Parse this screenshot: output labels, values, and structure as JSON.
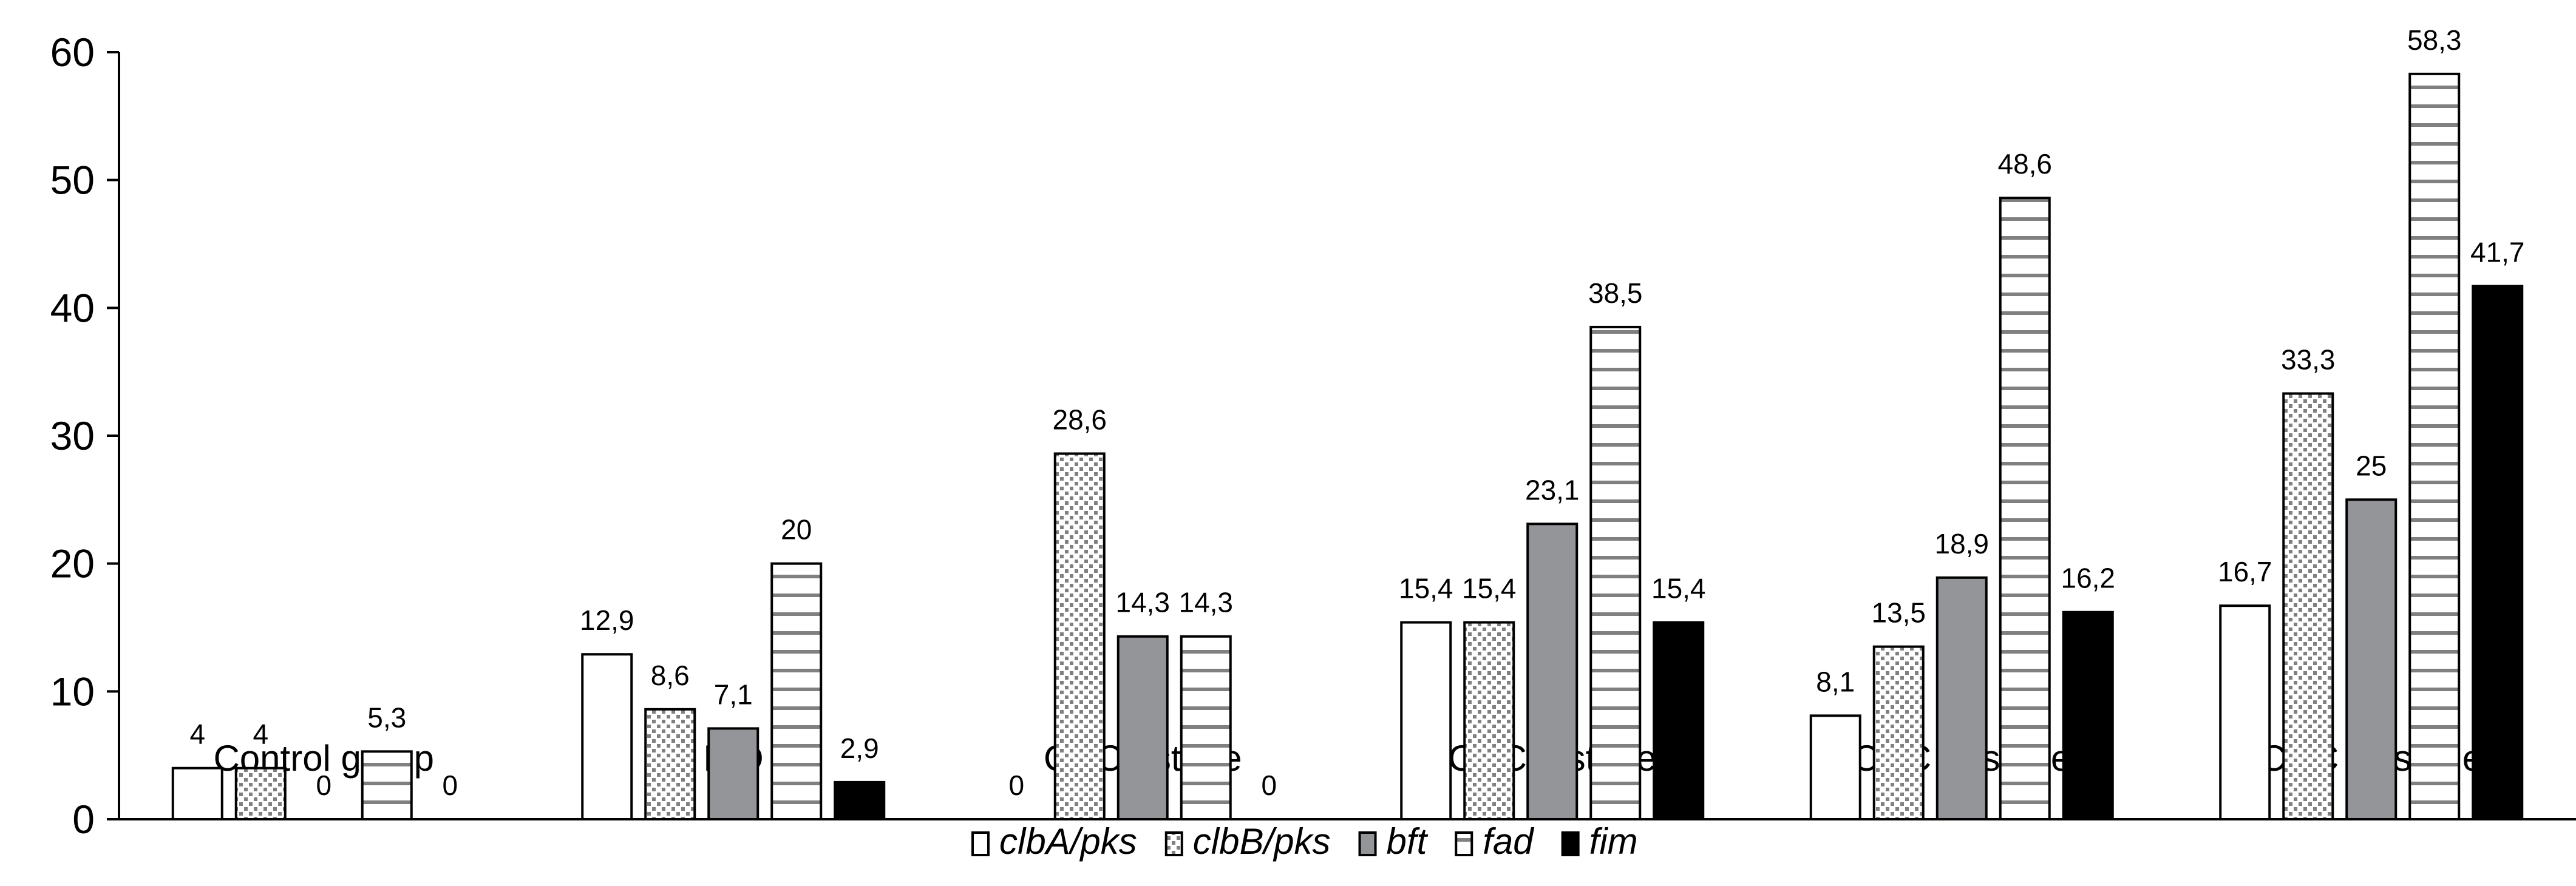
{
  "chart_data": {
    "type": "bar",
    "title": "",
    "xlabel": "",
    "ylabel": "",
    "ylim": [
      0,
      60
    ],
    "yticks": [
      "0",
      "10",
      "20",
      "30",
      "40",
      "50",
      "60"
    ],
    "grid": false,
    "legend_placement": "bottom",
    "categories": [
      "Control group",
      "IBD",
      "CRC I stage",
      "CRC II stage",
      "CRC III stage",
      "CRC IV stage"
    ],
    "series": [
      {
        "name": "clbA/pks",
        "pattern": "white",
        "values": [
          4,
          12.9,
          0,
          15.4,
          8.1,
          16.7
        ],
        "labels": [
          "4",
          "12,9",
          "0",
          "15,4",
          "8,1",
          "16,7"
        ]
      },
      {
        "name": "clbB/pks",
        "pattern": "dotted",
        "values": [
          4,
          8.6,
          28.6,
          15.4,
          13.5,
          33.3
        ],
        "labels": [
          "4",
          "8,6",
          "28,6",
          "15,4",
          "13,5",
          "33,3"
        ]
      },
      {
        "name": "bft",
        "pattern": "gray",
        "values": [
          0,
          7.1,
          14.3,
          23.1,
          18.9,
          25
        ],
        "labels": [
          "0",
          "7,1",
          "14,3",
          "23,1",
          "18,9",
          "25"
        ]
      },
      {
        "name": "fad",
        "pattern": "horizontal-stripes",
        "values": [
          5.3,
          20,
          14.3,
          38.5,
          48.6,
          58.3
        ],
        "labels": [
          "5,3",
          "20",
          "14,3",
          "38,5",
          "48,6",
          "58,3"
        ]
      },
      {
        "name": "fim",
        "pattern": "black",
        "values": [
          0,
          2.9,
          0,
          15.4,
          16.2,
          41.7
        ],
        "labels": [
          "0",
          "2,9",
          "0",
          "15,4",
          "16,2",
          "41,7"
        ]
      }
    ],
    "colors": {
      "gray_fill": "#939598",
      "pattern_gray": "#808080",
      "black": "#000000"
    }
  }
}
